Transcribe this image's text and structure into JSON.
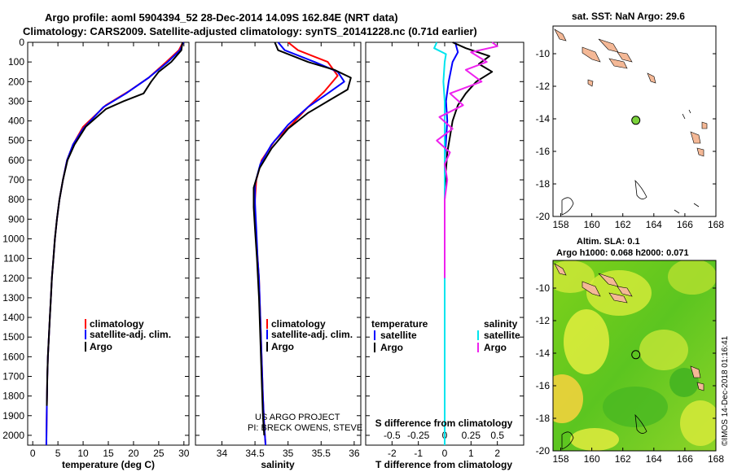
{
  "header": {
    "line1": "Argo profile: aoml 5904394_52 28-Dec-2014 14.09S 162.84E (NRT data)",
    "line2": "Climatology: CARS2009. Satellite-adjusted climatology: synTS_20141228.nc (0.71d earlier)"
  },
  "map1": {
    "title": "sat. SST: NaN Argo: 29.6"
  },
  "map2": {
    "title1": "Altim. SLA: 0.1",
    "title2": "Argo h1000: 0.068 h2000: 0.071"
  },
  "footer": {
    "project": "US ARGO PROJECT",
    "pi": "PI: BRECK OWENS, STEVE JAYNE, P.E. ROBBINS",
    "imos": "©IMOS 14-Dec-2018 01:16:41"
  },
  "colors": {
    "climatology": "#ff0000",
    "satellite": "#0000ff",
    "argo": "#000000",
    "sal_sat": "#00e5ee",
    "sal_argo": "#ee22ee",
    "land": "#f4b896",
    "float": "#7ad23a"
  },
  "chart_data": [
    {
      "type": "line",
      "name": "temperature",
      "xlabel": "temperature (deg C)",
      "ylabel": "",
      "xlim": [
        -1,
        31
      ],
      "ylim": [
        2050,
        0
      ],
      "xticks": [
        "0",
        "5",
        "10",
        "15",
        "20",
        "25",
        "30"
      ],
      "yticks": [
        "0",
        "100",
        "200",
        "300",
        "400",
        "500",
        "600",
        "700",
        "800",
        "900",
        "1000",
        "1100",
        "1200",
        "1300",
        "1400",
        "1500",
        "1600",
        "1700",
        "1800",
        "1900",
        "2000"
      ],
      "legend": [
        "climatology",
        "satellite-adj. clim.",
        "Argo"
      ],
      "series": [
        {
          "name": "climatology",
          "x": [
            29.8,
            29.0,
            26.5,
            23.0,
            19.0,
            14.5,
            10.0,
            8.0,
            6.8,
            6.0,
            5.3,
            4.8,
            4.4,
            4.1,
            3.8,
            3.6,
            3.4,
            3.2,
            3.0,
            2.9,
            2.8,
            2.7
          ],
          "y": [
            0,
            40,
            100,
            180,
            250,
            320,
            430,
            520,
            600,
            700,
            800,
            900,
            1000,
            1100,
            1200,
            1300,
            1400,
            1500,
            1600,
            1700,
            1850,
            2050
          ]
        },
        {
          "name": "satellite-adj. clim.",
          "x": [
            29.9,
            29.2,
            26.8,
            23.0,
            18.5,
            14.0,
            10.0,
            8.0,
            6.8,
            6.0,
            5.3,
            4.8,
            4.4,
            4.1,
            3.8,
            3.6,
            3.4,
            3.2,
            3.0,
            2.9,
            2.8,
            2.7
          ],
          "y": [
            0,
            40,
            100,
            180,
            260,
            330,
            440,
            520,
            600,
            700,
            800,
            900,
            1000,
            1100,
            1200,
            1300,
            1400,
            1500,
            1600,
            1700,
            1850,
            2050
          ]
        },
        {
          "name": "Argo",
          "x": [
            29.7,
            29.5,
            27.5,
            25.0,
            23.5,
            22.0,
            18.0,
            14.5,
            10.5,
            8.3,
            6.9,
            6.0,
            5.3,
            4.8,
            4.4,
            4.1,
            3.8,
            3.6,
            3.4,
            3.2,
            3.0,
            2.9,
            2.8
          ],
          "y": [
            0,
            40,
            100,
            150,
            200,
            260,
            300,
            340,
            430,
            520,
            600,
            700,
            800,
            900,
            1000,
            1100,
            1200,
            1300,
            1400,
            1500,
            1600,
            1700,
            1850
          ]
        }
      ]
    },
    {
      "type": "line",
      "name": "salinity",
      "xlabel": "salinity",
      "xlim": [
        33.6,
        36.1
      ],
      "ylim": [
        2050,
        0
      ],
      "xticks": [
        "34",
        "34.5",
        "35",
        "35.5",
        "36"
      ],
      "legend": [
        "climatology",
        "satellite-adj. clim.",
        "Argo"
      ],
      "series": [
        {
          "name": "climatology",
          "x": [
            35.0,
            35.15,
            35.6,
            35.75,
            35.55,
            35.3,
            35.05,
            34.8,
            34.6,
            34.52,
            34.5,
            34.5,
            34.52,
            34.54,
            34.56,
            34.58,
            34.6,
            34.62,
            34.64,
            34.66
          ],
          "y": [
            0,
            40,
            100,
            170,
            250,
            330,
            420,
            500,
            600,
            700,
            800,
            900,
            1000,
            1100,
            1200,
            1400,
            1600,
            1800,
            1950,
            2050
          ]
        },
        {
          "name": "satellite-adj. clim.",
          "x": [
            34.85,
            34.95,
            35.4,
            35.75,
            35.85,
            35.6,
            35.3,
            35.0,
            34.75,
            34.58,
            34.5,
            34.5,
            34.52,
            34.54,
            34.56,
            34.58,
            34.6,
            34.62,
            34.64,
            34.66
          ],
          "y": [
            0,
            40,
            100,
            150,
            200,
            260,
            330,
            420,
            520,
            620,
            720,
            820,
            950,
            1100,
            1200,
            1400,
            1600,
            1800,
            1950,
            2050
          ]
        },
        {
          "name": "Argo",
          "x": [
            34.8,
            34.85,
            35.3,
            35.7,
            35.95,
            35.9,
            35.6,
            35.3,
            35.0,
            34.75,
            34.57,
            34.48,
            34.48,
            34.5,
            34.53,
            34.56,
            34.58,
            34.6,
            34.62,
            34.64
          ],
          "y": [
            0,
            40,
            100,
            140,
            180,
            240,
            300,
            360,
            440,
            540,
            640,
            740,
            840,
            950,
            1100,
            1300,
            1500,
            1700,
            1900,
            2000
          ]
        }
      ]
    },
    {
      "type": "line",
      "name": "difference",
      "xlabel": "T difference from climatology",
      "x2label": "S difference from climatology",
      "xlim": [
        -3.0,
        3.0
      ],
      "ylim": [
        2050,
        0
      ],
      "xticks": [
        "-2",
        "-1",
        "0",
        "1",
        "2"
      ],
      "x2ticks": [
        "-0.5",
        "-0.25",
        "0",
        "0.25",
        "0.5"
      ],
      "legend_t_title": "temperature",
      "legend_s_title": "salinity",
      "legend_t": [
        "satellite",
        "Argo"
      ],
      "legend_s": [
        "satellite",
        "Argo"
      ],
      "series": [
        {
          "name": "T satellite",
          "x": [
            0.4,
            0.5,
            0.3,
            0.15,
            0.05,
            0.1,
            0.05,
            0.0,
            0.0,
            0.0,
            0.0,
            0.0,
            0.0
          ],
          "y": [
            0,
            50,
            100,
            200,
            300,
            400,
            500,
            600,
            800,
            1000,
            1400,
            1800,
            2050
          ]
        },
        {
          "name": "T Argo",
          "x": [
            0.3,
            0.8,
            1.7,
            1.3,
            1.8,
            1.2,
            0.8,
            0.5,
            0.3,
            0.2,
            0.1,
            0.05,
            0.0,
            0.0,
            0.0
          ],
          "y": [
            0,
            30,
            70,
            110,
            150,
            200,
            260,
            320,
            400,
            480,
            560,
            650,
            800,
            1000,
            1300
          ]
        },
        {
          "name": "S satellite",
          "x": [
            -0.3,
            -0.4,
            0.05,
            0.0,
            -0.05,
            0.0,
            0.0,
            0.0,
            0.0,
            0.0,
            0.0,
            0.0,
            0.0
          ],
          "y": [
            0,
            30,
            60,
            100,
            200,
            300,
            400,
            500,
            700,
            900,
            1300,
            1700,
            2050
          ]
        },
        {
          "name": "S Argo",
          "x": [
            1.8,
            2.0,
            1.0,
            1.6,
            0.8,
            1.4,
            0.2,
            0.7,
            -0.2,
            0.3,
            -0.3,
            0.2,
            0.0,
            0.1,
            0.0,
            0.0,
            0.0
          ],
          "y": [
            0,
            20,
            50,
            100,
            140,
            200,
            260,
            320,
            380,
            440,
            500,
            560,
            620,
            700,
            800,
            1000,
            1200
          ]
        }
      ]
    },
    {
      "type": "scatter",
      "name": "map-sst",
      "xlim": [
        157.5,
        168
      ],
      "ylim": [
        -20,
        -8.3
      ],
      "xticks": [
        "158",
        "160",
        "162",
        "164",
        "166",
        "168"
      ],
      "yticks": [
        "-10",
        "-12",
        "-14",
        "-16",
        "-18",
        "-20"
      ],
      "float_position": {
        "lon": 162.84,
        "lat": -14.09
      }
    },
    {
      "type": "heatmap",
      "name": "map-sla",
      "xlim": [
        157.5,
        168
      ],
      "ylim": [
        -20,
        -8.3
      ],
      "xticks": [
        "158",
        "160",
        "162",
        "164",
        "166",
        "168"
      ],
      "yticks": [
        "-10",
        "-12",
        "-14",
        "-16",
        "-18",
        "-20"
      ],
      "float_position": {
        "lon": 162.84,
        "lat": -14.09
      }
    }
  ]
}
